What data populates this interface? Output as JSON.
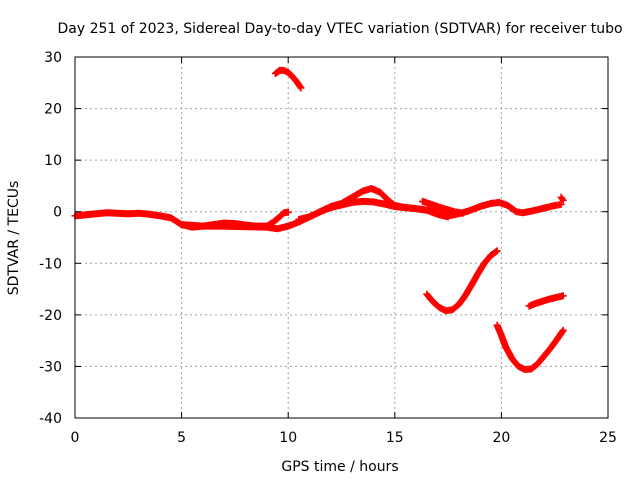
{
  "chart_data": {
    "type": "scatter",
    "title": "Day 251 of 2023, Sidereal Day-to-day VTEC variation (SDTVAR) for receiver tubo",
    "xlabel": "GPS time / hours",
    "ylabel": "SDTVAR / TECUs",
    "xlim": [
      0,
      25
    ],
    "ylim": [
      -40,
      30
    ],
    "xticks": [
      0,
      5,
      10,
      15,
      20,
      25
    ],
    "yticks": [
      -40,
      -30,
      -20,
      -10,
      0,
      10,
      20,
      30
    ],
    "xtick_labels": [
      "0",
      "5",
      "10",
      "15",
      "20",
      "25"
    ],
    "ytick_labels": [
      "-40",
      "-30",
      "-20",
      "-10",
      "0",
      "10",
      "20",
      "30"
    ],
    "grid": true,
    "legend": "none",
    "marker": "plus",
    "color": "#ff0000",
    "series": [
      {
        "name": "track-a",
        "x": [
          0.0,
          0.5,
          1.0,
          1.5,
          2.0,
          2.5,
          3.0,
          3.5,
          4.0,
          4.5,
          5.0,
          5.5,
          6.0,
          6.5,
          7.0,
          7.5,
          8.0,
          8.5,
          9.0,
          9.3,
          9.6,
          9.8,
          10.0
        ],
        "y": [
          -0.8,
          -0.6,
          -0.4,
          -0.2,
          -0.3,
          -0.4,
          -0.3,
          -0.5,
          -0.8,
          -1.2,
          -2.5,
          -3.0,
          -2.8,
          -2.5,
          -2.2,
          -2.3,
          -2.6,
          -2.8,
          -2.8,
          -2.0,
          -1.0,
          -0.2,
          -0.1
        ]
      },
      {
        "name": "track-b",
        "x": [
          5.0,
          6.0,
          7.0,
          8.0,
          9.0,
          9.5,
          10.0,
          10.5,
          11.0,
          11.5,
          12.0,
          12.5,
          13.0,
          13.5,
          14.0,
          14.5,
          15.0,
          15.5,
          16.0,
          16.5,
          17.0,
          17.5
        ],
        "y": [
          -2.5,
          -2.8,
          -2.8,
          -2.9,
          -3.0,
          -3.3,
          -2.8,
          -2.0,
          -1.0,
          0.0,
          0.8,
          1.3,
          1.8,
          2.0,
          1.9,
          1.5,
          1.0,
          0.8,
          0.6,
          0.3,
          -0.5,
          -1.0
        ]
      },
      {
        "name": "track-c",
        "x": [
          10.5,
          11.0,
          11.5,
          12.0,
          12.5,
          13.0,
          13.5,
          13.9,
          14.3,
          14.7,
          15.0,
          15.5,
          16.0,
          16.5,
          17.0,
          17.5,
          18.0,
          18.5,
          19.0,
          19.5,
          19.9,
          20.3,
          20.7,
          21.0,
          21.5,
          22.0,
          22.5,
          22.8
        ],
        "y": [
          -1.5,
          -1.0,
          0.0,
          1.0,
          1.6,
          2.8,
          4.0,
          4.5,
          3.8,
          2.2,
          1.2,
          0.8,
          0.6,
          0.3,
          -0.2,
          -0.8,
          -0.4,
          0.2,
          1.0,
          1.6,
          1.8,
          1.2,
          0.0,
          -0.2,
          0.2,
          0.7,
          1.2,
          1.4
        ]
      },
      {
        "name": "track-d",
        "x": [
          16.3,
          16.8,
          17.3,
          17.8,
          18.2
        ],
        "y": [
          2.0,
          1.3,
          0.6,
          0.0,
          -0.3
        ]
      },
      {
        "name": "track-e",
        "x": [
          9.4,
          9.6,
          9.8,
          10.0,
          10.2,
          10.4,
          10.6
        ],
        "y": [
          26.8,
          27.4,
          27.4,
          27.0,
          26.2,
          25.2,
          24.0
        ]
      },
      {
        "name": "track-f",
        "x": [
          16.5,
          16.8,
          17.1,
          17.4,
          17.7,
          18.0,
          18.3,
          18.6,
          18.9,
          19.2,
          19.5,
          19.8
        ],
        "y": [
          -16.0,
          -17.5,
          -18.6,
          -19.2,
          -19.0,
          -18.0,
          -16.3,
          -14.2,
          -12.0,
          -10.0,
          -8.5,
          -7.6
        ]
      },
      {
        "name": "track-g",
        "x": [
          19.8,
          20.0,
          20.2,
          20.5,
          20.8,
          21.1,
          21.4,
          21.7,
          22.0,
          22.3,
          22.6,
          22.9
        ],
        "y": [
          -22.0,
          -24.0,
          -26.2,
          -28.5,
          -30.0,
          -30.6,
          -30.5,
          -29.5,
          -28.0,
          -26.5,
          -24.8,
          -23.0
        ]
      },
      {
        "name": "track-h",
        "x": [
          21.3,
          21.6,
          21.9,
          22.2,
          22.5,
          22.9
        ],
        "y": [
          -18.3,
          -17.8,
          -17.4,
          -17.0,
          -16.7,
          -16.3
        ]
      },
      {
        "name": "track-i",
        "x": [
          22.8,
          22.9
        ],
        "y": [
          2.8,
          2.2
        ]
      }
    ]
  }
}
